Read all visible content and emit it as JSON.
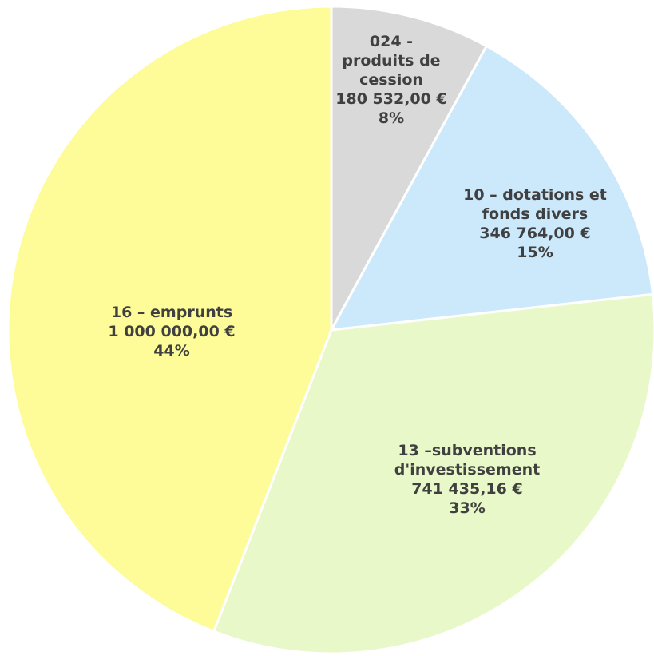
{
  "chart_data": {
    "type": "pie",
    "categories": [
      "024 - produits de cession",
      "10 – dotations et fonds divers",
      "13 –subventions d'investissement",
      "16 – emprunts"
    ],
    "values": [
      180532,
      346764,
      741435.16,
      1000000
    ],
    "value_labels": [
      "180 532,00 €",
      "346 764,00 €",
      "741 435,16 €",
      "1 000 000,00 €"
    ],
    "percent_labels": [
      "8%",
      "15%",
      "33%",
      "44%"
    ],
    "colors": [
      "#d9d9d9",
      "#cce9fb",
      "#e8f8c8",
      "#fdfc99"
    ]
  }
}
